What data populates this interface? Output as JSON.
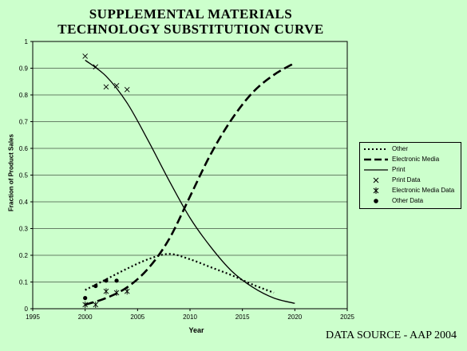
{
  "title_line1": "SUPPLEMENTAL MATERIALS",
  "title_line2": "TECHNOLOGY SUBSTITUTION CURVE",
  "source_note": "DATA SOURCE - AAP 2004",
  "colors": {
    "background": "#ccffcc",
    "plot_area": "#ccffcc",
    "ink": "#000000"
  },
  "chart_data": {
    "type": "line",
    "xlabel": "Year",
    "ylabel": "Fraction of Product Sales",
    "xlim": [
      1995,
      2025
    ],
    "ylim": [
      0,
      1
    ],
    "xticks": [
      1995,
      2000,
      2005,
      2010,
      2015,
      2020,
      2025
    ],
    "yticks": [
      0,
      0.1,
      0.2,
      0.3,
      0.4,
      0.5,
      0.6,
      0.7,
      0.8,
      0.9,
      1
    ],
    "grid": "horizontal",
    "legend_position": "right",
    "series": [
      {
        "name": "Other",
        "kind": "line",
        "style": "dotted",
        "x": [
          2000,
          2002,
          2004,
          2006,
          2008,
          2010,
          2012,
          2014,
          2016,
          2018
        ],
        "y": [
          0.07,
          0.11,
          0.15,
          0.185,
          0.205,
          0.185,
          0.155,
          0.125,
          0.09,
          0.06
        ]
      },
      {
        "name": "Electronic Media",
        "kind": "line",
        "style": "dashed",
        "x": [
          2000,
          2002,
          2004,
          2006,
          2008,
          2010,
          2012,
          2014,
          2016,
          2018,
          2020
        ],
        "y": [
          0.015,
          0.04,
          0.08,
          0.15,
          0.26,
          0.42,
          0.58,
          0.71,
          0.81,
          0.875,
          0.92
        ]
      },
      {
        "name": "Print",
        "kind": "line",
        "style": "solid",
        "x": [
          2000,
          2002,
          2004,
          2006,
          2008,
          2010,
          2012,
          2014,
          2016,
          2018,
          2020
        ],
        "y": [
          0.93,
          0.87,
          0.77,
          0.63,
          0.48,
          0.34,
          0.23,
          0.14,
          0.08,
          0.04,
          0.02
        ]
      },
      {
        "name": "Print Data",
        "kind": "marker",
        "marker": "x",
        "x": [
          2000,
          2001,
          2002,
          2003,
          2004
        ],
        "y": [
          0.945,
          0.905,
          0.83,
          0.835,
          0.82
        ]
      },
      {
        "name": "Electronic Media Data",
        "kind": "marker",
        "marker": "star",
        "x": [
          2000,
          2001,
          2002,
          2003,
          2004
        ],
        "y": [
          0.015,
          0.015,
          0.065,
          0.06,
          0.065
        ]
      },
      {
        "name": "Other Data",
        "kind": "marker",
        "marker": "dot",
        "x": [
          2000,
          2001,
          2002,
          2003
        ],
        "y": [
          0.04,
          0.085,
          0.105,
          0.105
        ]
      }
    ]
  }
}
